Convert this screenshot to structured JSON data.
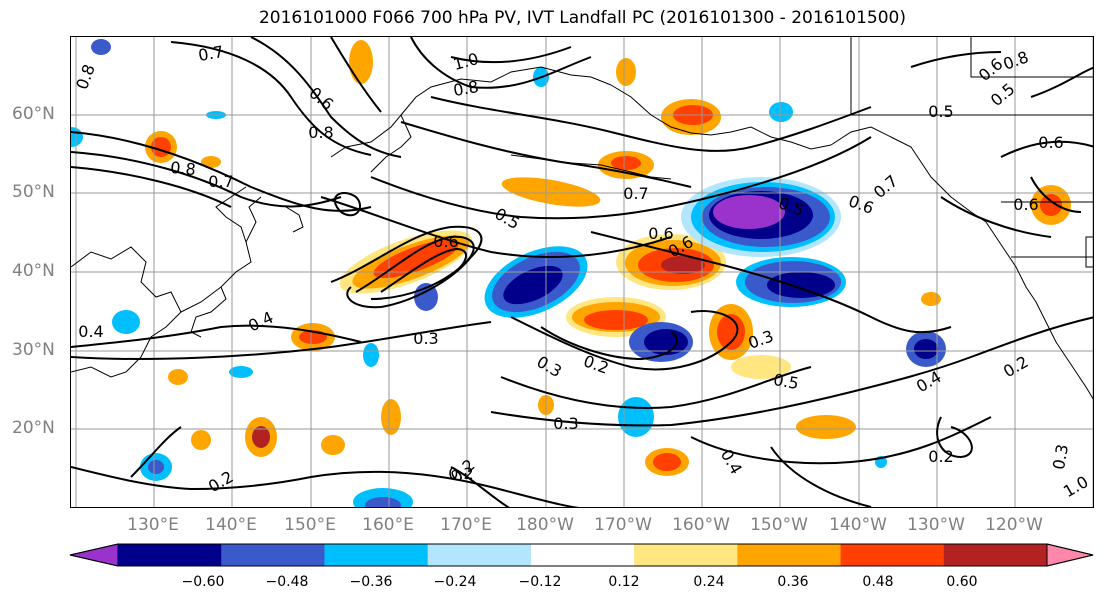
{
  "title": "2016101000 F066 700 hPa PV, IVT Landfall PC (2016101300 - 2016101500)",
  "axes": {
    "latitudes": [
      "20°N",
      "30°N",
      "40°N",
      "50°N",
      "60°N"
    ],
    "longitudes": [
      "130°E",
      "140°E",
      "150°E",
      "160°E",
      "170°E",
      "180°W",
      "170°W",
      "160°W",
      "150°W",
      "140°W",
      "130°W",
      "120°W"
    ]
  },
  "colorbar": {
    "ticks": [
      "−0.60",
      "−0.48",
      "−0.36",
      "−0.24",
      "−0.12",
      "0.12",
      "0.24",
      "0.36",
      "0.48",
      "0.60"
    ],
    "colors": [
      "#9933cc",
      "#00008b",
      "#3a5acc",
      "#00bfff",
      "#b2e6ff",
      "#ffffff",
      "#ffe680",
      "#ffa500",
      "#ff4000",
      "#b22222",
      "#ff88aa"
    ]
  },
  "contour_labels": [
    {
      "text": "0.7"
    },
    {
      "text": "0.8"
    },
    {
      "text": "1.0"
    },
    {
      "text": "0.8"
    },
    {
      "text": "0.8"
    },
    {
      "text": "0.6"
    },
    {
      "text": "0.8"
    },
    {
      "text": "0.7"
    },
    {
      "text": "0.5"
    },
    {
      "text": "0.7"
    },
    {
      "text": "0.6"
    },
    {
      "text": "0.6"
    },
    {
      "text": "0.5"
    },
    {
      "text": "0.6"
    },
    {
      "text": "0.6"
    },
    {
      "text": "0.7"
    },
    {
      "text": "0.5"
    },
    {
      "text": "0.6"
    },
    {
      "text": "0.5"
    },
    {
      "text": "0.6"
    },
    {
      "text": "0.6"
    },
    {
      "text": "0.4"
    },
    {
      "text": "0.4"
    },
    {
      "text": "0.3"
    },
    {
      "text": "0.2"
    },
    {
      "text": "0.3"
    },
    {
      "text": "0.5"
    },
    {
      "text": "0.3"
    },
    {
      "text": "0.3"
    },
    {
      "text": "0.2"
    },
    {
      "text": "0.2"
    },
    {
      "text": "0.2"
    },
    {
      "text": "0.4"
    },
    {
      "text": "0.4"
    },
    {
      "text": "0.2"
    },
    {
      "text": "0.2"
    },
    {
      "text": "0.3"
    },
    {
      "text": "1.0"
    },
    {
      "text": "0.8"
    }
  ]
}
